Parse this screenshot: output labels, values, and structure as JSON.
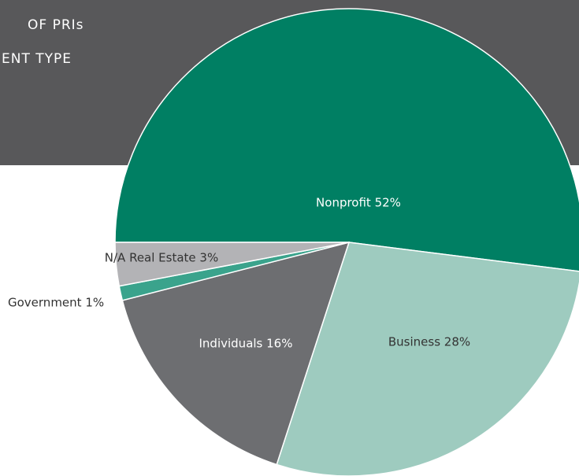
{
  "chart_data": {
    "type": "pie",
    "title_lines": [
      "OF PRIs",
      "ENT TYPE"
    ],
    "categories": [
      "Nonprofit",
      "Business",
      "Individuals",
      "Government",
      "N/A Real Estate"
    ],
    "values": [
      52,
      28,
      16,
      1,
      3
    ],
    "value_labels": [
      "Nonprofit 52%",
      "Business 28%",
      "Individuals 16%",
      "Government 1%",
      "N/A Real Estate 3%"
    ],
    "colors": [
      "#007f63",
      "#9ecbbf",
      "#6d6e71",
      "#3aa38c",
      "#b3b3b6"
    ]
  }
}
